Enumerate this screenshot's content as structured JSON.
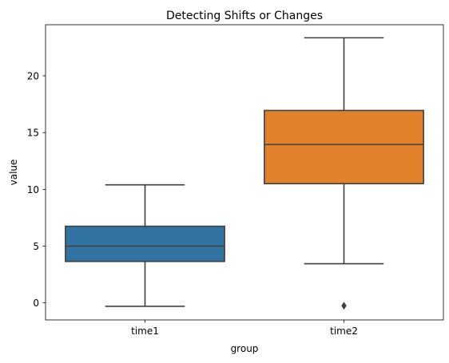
{
  "chart_data": {
    "type": "box",
    "title": "Detecting Shifts or Changes",
    "xlabel": "group",
    "ylabel": "value",
    "categories": [
      "time1",
      "time2"
    ],
    "ylim": [
      -1.5,
      24.5
    ],
    "yticks": [
      0,
      5,
      10,
      15,
      20
    ],
    "boxes": [
      {
        "category": "time1",
        "whisker_low": -0.3,
        "q1": 3.65,
        "median": 5.0,
        "q3": 6.75,
        "whisker_high": 10.4,
        "outliers": [],
        "color": "#3274a1"
      },
      {
        "category": "time2",
        "whisker_low": 3.45,
        "q1": 10.5,
        "median": 13.95,
        "q3": 16.95,
        "whisker_high": 23.35,
        "outliers": [
          -0.25
        ],
        "color": "#e1812c"
      }
    ],
    "grid": false,
    "legend": "none"
  }
}
